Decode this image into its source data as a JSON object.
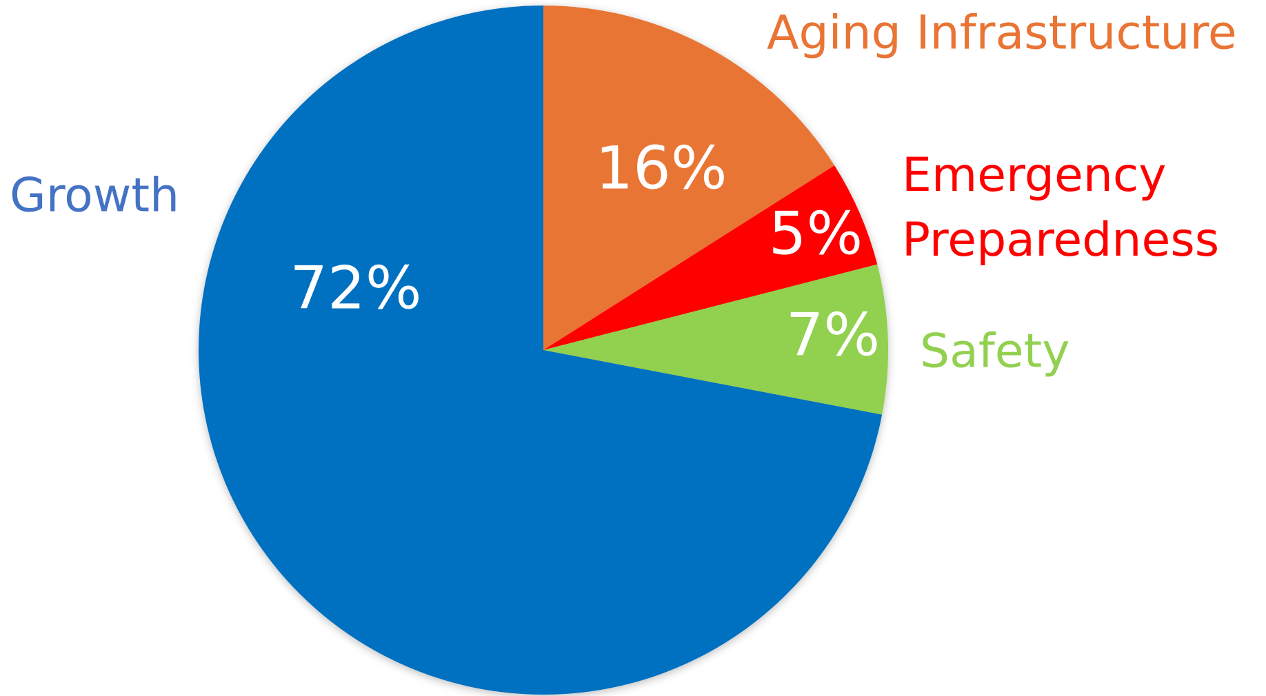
{
  "chart_data": {
    "type": "pie",
    "categories": [
      "Aging Infrastructure",
      "Emergency Preparedness",
      "Safety",
      "Growth"
    ],
    "values": [
      16,
      5,
      7,
      72
    ],
    "value_labels": [
      "16%",
      "5%",
      "7%",
      "72%"
    ],
    "colors": [
      "#e97434",
      "#ff0000",
      "#92d050",
      "#0070c0"
    ]
  }
}
